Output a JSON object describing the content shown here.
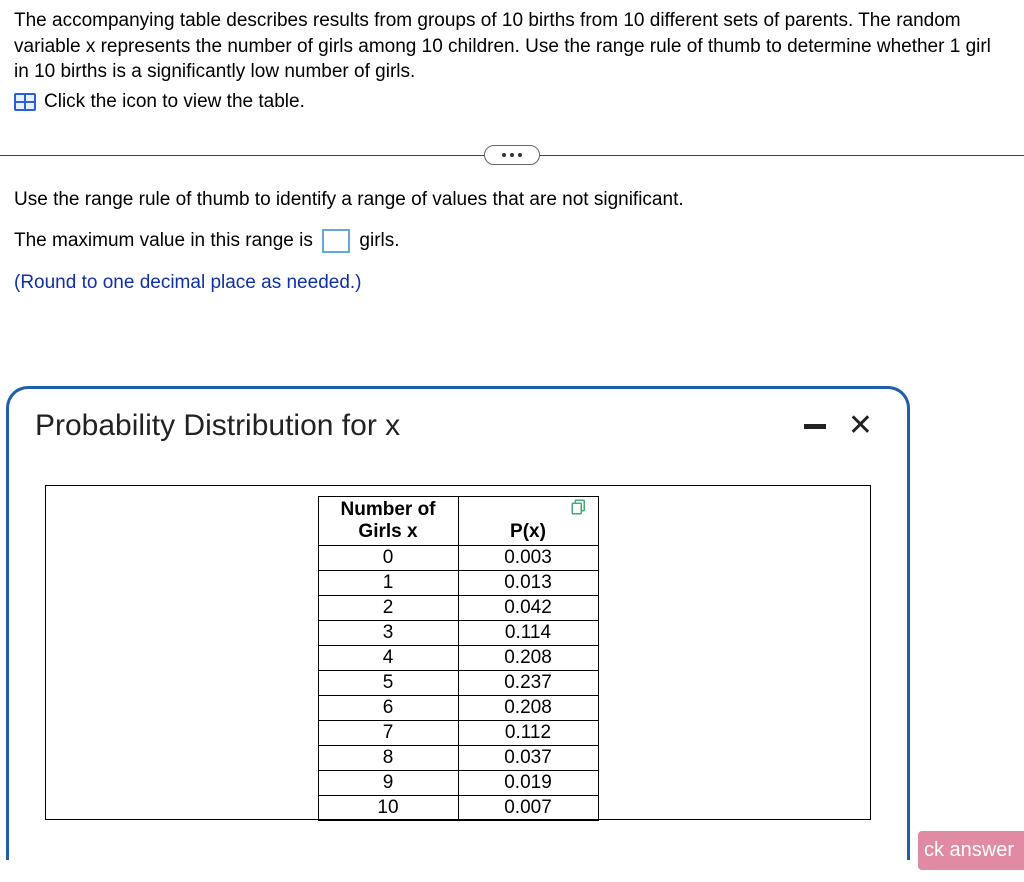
{
  "problem": {
    "description": "The accompanying table describes results from groups of 10 births from 10 different sets of parents. The random variable x represents the number of girls among 10 children. Use the range rule of thumb to determine whether 1 girl in 10 births is a significantly low number of girls.",
    "icon_link_text": "Click the icon to view the table."
  },
  "prompt": {
    "instruction": "Use the range rule of thumb to identify a range of values that are not significant.",
    "fill_sentence_prefix": "The maximum value in this range is ",
    "fill_sentence_suffix": " girls.",
    "round_note": "(Round to one decimal place as needed.)"
  },
  "popup": {
    "title": "Probability Distribution for x",
    "table": {
      "col1_header_line1": "Number of",
      "col1_header_line2": "Girls x",
      "col2_header": "P(x)",
      "rows": [
        {
          "x": "0",
          "p": "0.003"
        },
        {
          "x": "1",
          "p": "0.013"
        },
        {
          "x": "2",
          "p": "0.042"
        },
        {
          "x": "3",
          "p": "0.114"
        },
        {
          "x": "4",
          "p": "0.208"
        },
        {
          "x": "5",
          "p": "0.237"
        },
        {
          "x": "6",
          "p": "0.208"
        },
        {
          "x": "7",
          "p": "0.112"
        },
        {
          "x": "8",
          "p": "0.037"
        },
        {
          "x": "9",
          "p": "0.019"
        },
        {
          "x": "10",
          "p": "0.007"
        }
      ]
    }
  },
  "footer": {
    "check_answer_fragment": "ck answer"
  },
  "style": {
    "popup_border_color": "#1f5fa8",
    "instruction_color": "#1030a6",
    "answer_box_border": "#6ba5d8",
    "check_answer_bg": "#e08aa3"
  }
}
